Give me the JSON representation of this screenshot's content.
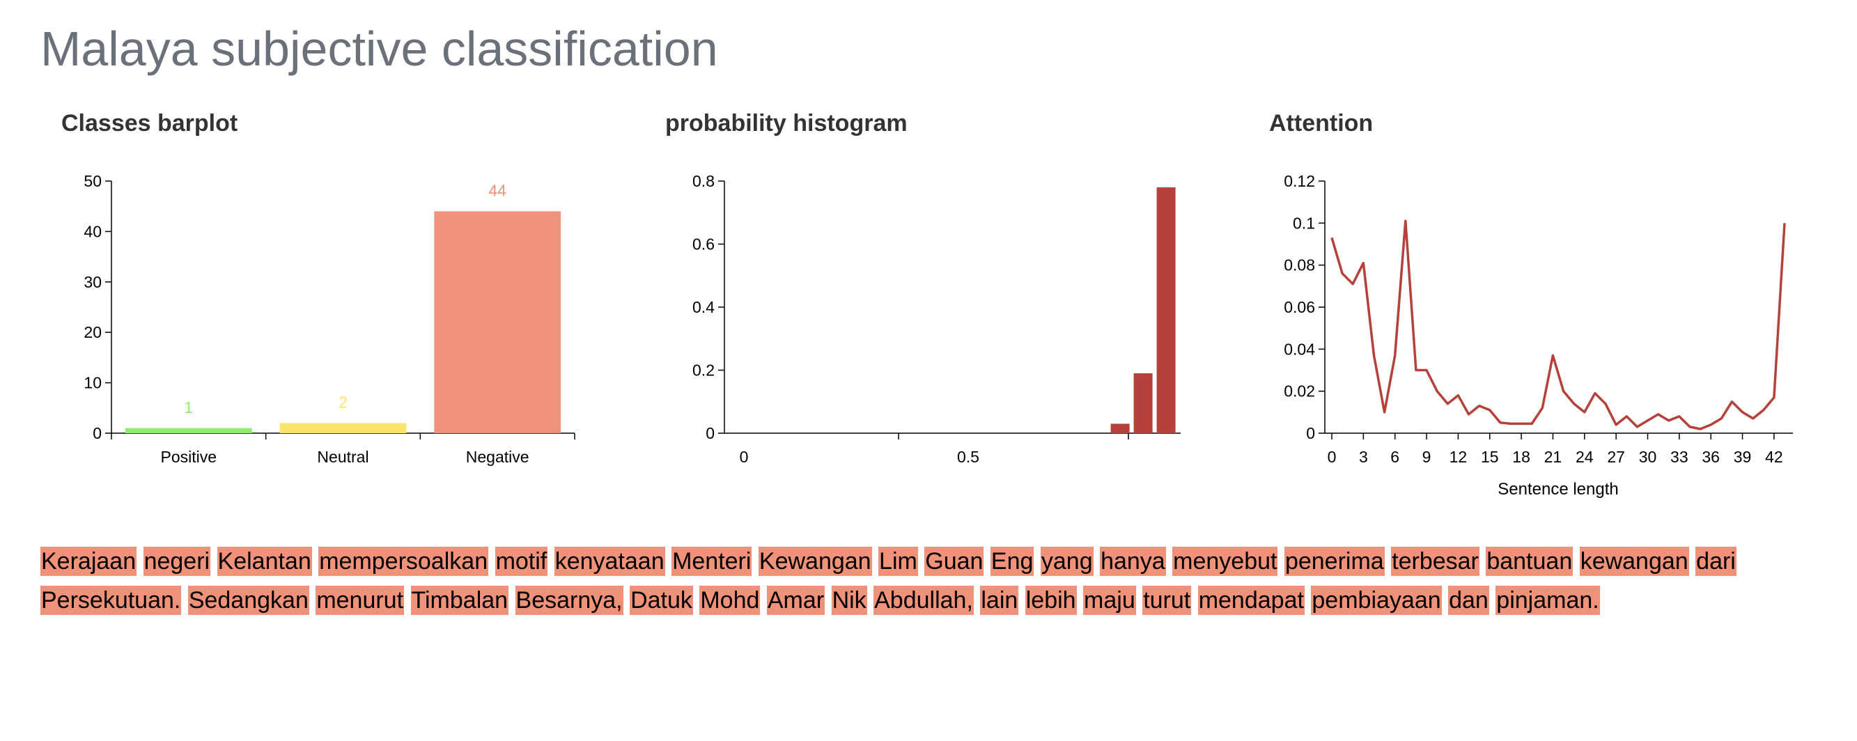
{
  "title": "Malaya subjective classification",
  "chart_data": [
    {
      "type": "bar",
      "title": "Classes barplot",
      "categories": [
        "Positive",
        "Neutral",
        "Negative"
      ],
      "values": [
        1,
        2,
        44
      ],
      "colors": [
        "#8ef06a",
        "#fbe46b",
        "#f0917a"
      ],
      "data_labels": [
        "1",
        "2",
        "44"
      ],
      "ylim": [
        0,
        50
      ],
      "yticks": [
        0,
        10,
        20,
        30,
        40,
        50
      ],
      "xlabel": "",
      "ylabel": "",
      "grid": false
    },
    {
      "type": "bar",
      "title": "probability histogram",
      "bins": [
        {
          "x": 0.81,
          "value": 0.03
        },
        {
          "x": 0.86,
          "value": 0.19
        },
        {
          "x": 0.91,
          "value": 0.78
        }
      ],
      "bar_color": "#b5413b",
      "xlim": [
        0,
        1
      ],
      "xticks": [
        0,
        0.5
      ],
      "ylim": [
        0,
        0.8
      ],
      "yticks": [
        0,
        0.2,
        0.4,
        0.6,
        0.8
      ],
      "xlabel": "",
      "ylabel": "",
      "grid": false
    },
    {
      "type": "line",
      "title": "Attention",
      "xlabel": "Sentence length",
      "ylabel": "",
      "x": [
        0,
        1,
        2,
        3,
        4,
        5,
        6,
        7,
        8,
        9,
        10,
        11,
        12,
        13,
        14,
        15,
        16,
        17,
        18,
        19,
        20,
        21,
        22,
        23,
        24,
        25,
        26,
        27,
        28,
        29,
        30,
        31,
        32,
        33,
        34,
        35,
        36,
        37,
        38,
        39,
        40,
        41,
        42,
        43
      ],
      "y": [
        0.093,
        0.076,
        0.071,
        0.081,
        0.037,
        0.01,
        0.037,
        0.101,
        0.03,
        0.03,
        0.02,
        0.014,
        0.018,
        0.009,
        0.013,
        0.011,
        0.005,
        0.0045,
        0.0045,
        0.0045,
        0.012,
        0.037,
        0.02,
        0.014,
        0.01,
        0.019,
        0.014,
        0.004,
        0.008,
        0.003,
        0.006,
        0.009,
        0.006,
        0.008,
        0.003,
        0.002,
        0.004,
        0.007,
        0.015,
        0.01,
        0.007,
        0.011,
        0.017,
        0.1
      ],
      "line_color": "#b5413b",
      "xlim": [
        0,
        43
      ],
      "xticks": [
        0,
        3,
        6,
        9,
        12,
        15,
        18,
        21,
        24,
        27,
        30,
        33,
        36,
        39,
        42
      ],
      "ylim": [
        0,
        0.12
      ],
      "yticks": [
        0,
        0.02,
        0.04,
        0.06,
        0.08,
        0.1,
        0.12
      ],
      "grid": false
    }
  ],
  "tokens": {
    "highlight_color": "#f0917a",
    "words": [
      "Kerajaan",
      "negeri",
      "Kelantan",
      "mempersoalkan",
      "motif",
      "kenyataan",
      "Menteri",
      "Kewangan",
      "Lim",
      "Guan",
      "Eng",
      "yang",
      "hanya",
      "menyebut",
      "penerima",
      "terbesar",
      "bantuan",
      "kewangan",
      "dari",
      "Persekutuan.",
      "Sedangkan",
      "menurut",
      "Timbalan",
      "Besarnya,",
      "Datuk",
      "Mohd",
      "Amar",
      "Nik",
      "Abdullah,",
      "lain",
      "lebih",
      "maju",
      "turut",
      "mendapat",
      "pembiayaan",
      "dan",
      "pinjaman."
    ]
  }
}
